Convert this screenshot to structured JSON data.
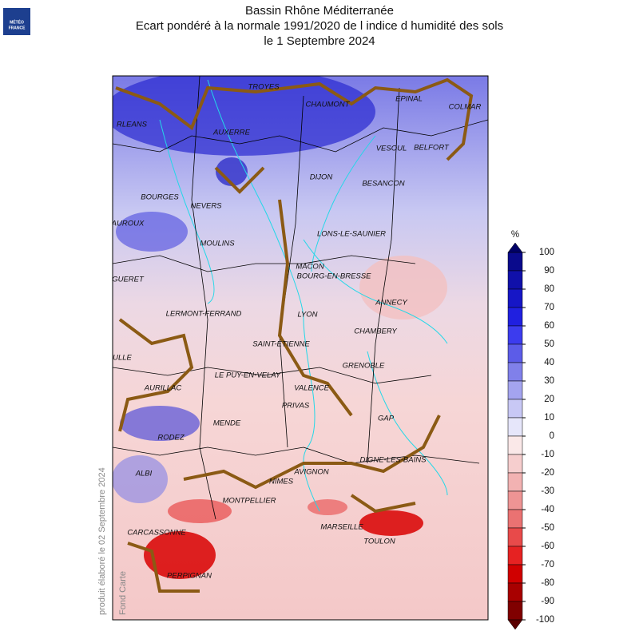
{
  "logo": {
    "line1": "MÉTÉO",
    "line2": "FRANCE"
  },
  "title": [
    "Bassin Rhône Méditerranée",
    "Ecart pondéré à la normale 1991/2020 de l indice d humidité des sols",
    "le 1 Septembre 2024"
  ],
  "side_text": [
    "produit élaboré le 02 Septembre 2024",
    "Fond Carte"
  ],
  "map": {
    "cities": [
      "TROYES",
      "CHAUMONT",
      "EPINAL",
      "COLMAR",
      "RLEANS",
      "AUXERRE",
      "VESOUL",
      "BELFORT",
      "DIJON",
      "BESANCON",
      "BOURGES",
      "NEVERS",
      "AUROUX",
      "LONS-LE-SAUNIER",
      "MOULINS",
      "MACON",
      "BOURG-EN-BRESSE",
      "GUERET",
      "ANNECY",
      "LERMONT-FERRAND",
      "LYON",
      "CHAMBERY",
      "SAINT-ETIENNE",
      "ULLE",
      "GRENOBLE",
      "LE PUY-EN-VELAY",
      "AURILLAC",
      "VALENCE",
      "PRIVAS",
      "GAP",
      "MENDE",
      "RODEZ",
      "DIGNE-LES-BAINS",
      "ALBI",
      "AVIGNON",
      "NIMES",
      "MONTPELLIER",
      "CARCASSONNE",
      "MARSEILLE",
      "TOULON",
      "PERPIGNAN"
    ]
  },
  "colorbar": {
    "unit": "%",
    "ticks": [
      100,
      90,
      80,
      70,
      60,
      50,
      40,
      30,
      20,
      10,
      0,
      -10,
      -20,
      -30,
      -40,
      -50,
      -60,
      -70,
      -80,
      -90,
      -100
    ],
    "colors": [
      "#0a0a8c",
      "#1010aa",
      "#1616c6",
      "#2020e0",
      "#3c3cee",
      "#5c5ce8",
      "#8080ea",
      "#a4a4ef",
      "#c8c8f5",
      "#e6e6fa",
      "#fae8e8",
      "#f6cece",
      "#f2b2b2",
      "#ee9494",
      "#ea7272",
      "#e84a4a",
      "#e62222",
      "#d00000",
      "#a80000",
      "#800000"
    ],
    "over_color": "#000066",
    "under_color": "#5a0000"
  }
}
